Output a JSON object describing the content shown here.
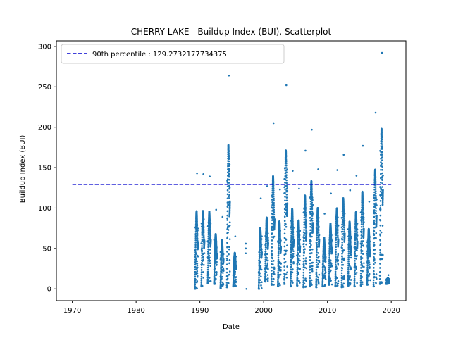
{
  "chart_data": {
    "type": "scatter",
    "title": "CHERRY LAKE - Buildup Index (BUI), Scatterplot",
    "xlabel": "Date",
    "ylabel": "Buildup Index (BUI)",
    "xlim": [
      1967.5,
      2022.3
    ],
    "ylim": [
      -14.6,
      306.9
    ],
    "x_ticks": [
      1970,
      1980,
      1990,
      2000,
      2010,
      2020
    ],
    "y_ticks": [
      0,
      50,
      100,
      150,
      200,
      250,
      300
    ],
    "grid": false,
    "legend_position": "top-left",
    "colors": {
      "points": "#1f77b4",
      "reference_line": "#0000cd"
    },
    "reference_line": {
      "label": "90th percentile : 129.2732177734375",
      "value": 129.2732177734375,
      "x_range": [
        1970,
        2020
      ]
    },
    "seasons": [
      {
        "year": 1989,
        "min": 0,
        "max": 143
      },
      {
        "year": 1990,
        "min": 3,
        "max": 142
      },
      {
        "year": 1991,
        "min": 7,
        "max": 139
      },
      {
        "year": 1992,
        "min": 6,
        "max": 98
      },
      {
        "year": 1993,
        "min": 1,
        "max": 89
      },
      {
        "year": 1994,
        "min": 2,
        "max": 264
      },
      {
        "year": 1995,
        "min": 3,
        "max": 65
      },
      {
        "year": 1999,
        "min": 0,
        "max": 112
      },
      {
        "year": 2000,
        "min": 9,
        "max": 127
      },
      {
        "year": 2001,
        "min": 5,
        "max": 205
      },
      {
        "year": 2002,
        "min": 3,
        "max": 123
      },
      {
        "year": 2003,
        "min": 6,
        "max": 252
      },
      {
        "year": 2004,
        "min": 3,
        "max": 146
      },
      {
        "year": 2005,
        "min": 4,
        "max": 124
      },
      {
        "year": 2006,
        "min": 2,
        "max": 171
      },
      {
        "year": 2007,
        "min": 3,
        "max": 197
      },
      {
        "year": 2008,
        "min": 2,
        "max": 148
      },
      {
        "year": 2009,
        "min": 3,
        "max": 93
      },
      {
        "year": 2010,
        "min": 5,
        "max": 118
      },
      {
        "year": 2011,
        "min": 3,
        "max": 147
      },
      {
        "year": 2012,
        "min": 2,
        "max": 166
      },
      {
        "year": 2013,
        "min": 4,
        "max": 122
      },
      {
        "year": 2014,
        "min": 3,
        "max": 140
      },
      {
        "year": 2015,
        "min": 4,
        "max": 177
      },
      {
        "year": 2016,
        "min": 5,
        "max": 108
      },
      {
        "year": 2017,
        "min": 3,
        "max": 218
      },
      {
        "year": 2018,
        "min": 6,
        "max": 292
      },
      {
        "year": 2019,
        "min": 6,
        "max": 17
      }
    ],
    "isolated_points": [
      {
        "x": 1997.2,
        "y": 56
      },
      {
        "x": 1997.2,
        "y": 50
      },
      {
        "x": 1997.2,
        "y": 44
      },
      {
        "x": 1997.3,
        "y": 0
      }
    ]
  }
}
